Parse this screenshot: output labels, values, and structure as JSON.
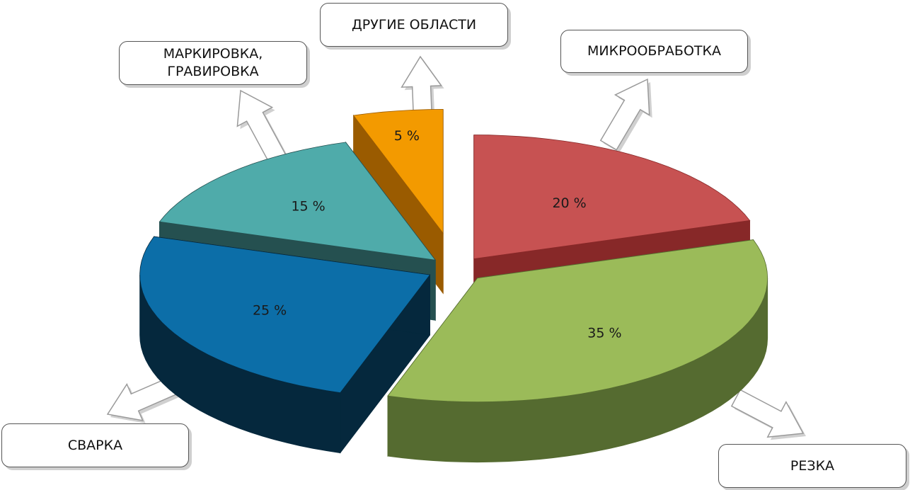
{
  "chart_data": {
    "type": "pie",
    "categories": [
      "МИКРООБРАБОТКА",
      "РЕЗКА",
      "СВАРКА",
      "МАРКИРОВКА, ГРАВИРОВКА",
      "ДРУГИЕ ОБЛАСТИ"
    ],
    "values": [
      20,
      35,
      25,
      15,
      5
    ],
    "value_labels": [
      "20 %",
      "35 %",
      "25 %",
      "15 %",
      "5 %"
    ],
    "colors": [
      "#c75252",
      "#9bbb59",
      "#0c6ea8",
      "#4fabaa",
      "#f39a00"
    ],
    "side_colors": [
      "#872828",
      "#556b30",
      "#05283d",
      "#255050",
      "#9a5b00"
    ],
    "exploded": true,
    "three_d": true
  }
}
